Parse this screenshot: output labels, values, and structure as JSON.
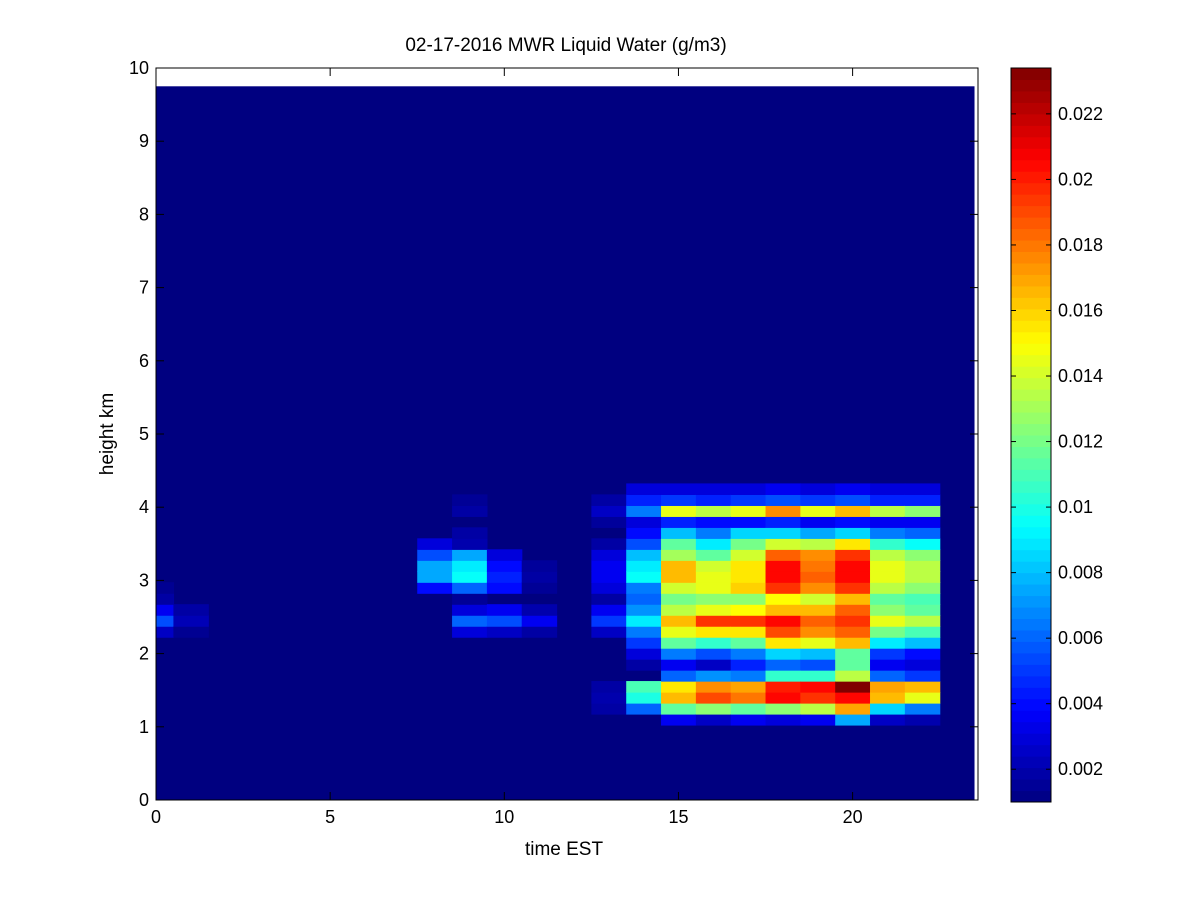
{
  "chart_data": {
    "type": "heatmap",
    "title": "02-17-2016 MWR Liquid Water (g/m3)",
    "xlabel": "time EST",
    "ylabel": "height km",
    "xlim": [
      0,
      23.6
    ],
    "ylim": [
      0,
      10
    ],
    "x_ticks": [
      "0",
      "5",
      "10",
      "15",
      "20"
    ],
    "y_ticks": [
      "0",
      "1",
      "2",
      "3",
      "4",
      "5",
      "6",
      "7",
      "8",
      "9",
      "10"
    ],
    "colormap": "jet",
    "colorbar": {
      "min": 0.001,
      "max": 0.0234,
      "ticks": [
        "0.002",
        "0.004",
        "0.006",
        "0.008",
        "0.01",
        "0.012",
        "0.014",
        "0.016",
        "0.018",
        "0.02",
        "0.022"
      ]
    },
    "background_value": 0.001,
    "data_extent": {
      "x": [
        0,
        23.5
      ],
      "y": [
        0,
        9.75
      ]
    },
    "x_bin_edges": [
      0,
      0.5,
      1.5,
      2.5,
      3.5,
      4.5,
      5.5,
      6.5,
      7.5,
      8.5,
      9.5,
      10.5,
      11.5,
      12.5,
      13.5,
      14.5,
      15.5,
      16.5,
      17.5,
      18.5,
      19.5,
      20.5,
      21.5,
      22.5,
      23.5
    ],
    "heights_km": [
      1.1,
      1.25,
      1.4,
      1.55,
      1.7,
      1.85,
      2.0,
      2.15,
      2.3,
      2.45,
      2.6,
      2.75,
      2.9,
      3.05,
      3.2,
      3.35,
      3.5,
      3.65,
      3.8,
      3.95,
      4.1,
      4.25
    ],
    "columns": [
      {
        "bin": 0,
        "values": {
          "2.3": 0.0025,
          "2.45": 0.0055,
          "2.6": 0.0035,
          "2.75": 0.0018,
          "2.9": 0.0014
        }
      },
      {
        "bin": 1,
        "values": {
          "2.3": 0.0014,
          "2.45": 0.0022,
          "2.6": 0.0018
        }
      },
      {
        "bin": 8,
        "values": {
          "2.9": 0.004,
          "3.05": 0.0075,
          "3.2": 0.0075,
          "3.35": 0.0055,
          "3.5": 0.003
        }
      },
      {
        "bin": 9,
        "values": {
          "2.3": 0.003,
          "2.45": 0.006,
          "2.6": 0.003,
          "2.75": 0.0015,
          "2.9": 0.006,
          "3.05": 0.0095,
          "3.2": 0.009,
          "3.35": 0.0075,
          "3.5": 0.002,
          "3.65": 0.0018,
          "3.95": 0.0018,
          "4.1": 0.0015
        }
      },
      {
        "bin": 10,
        "values": {
          "2.3": 0.0025,
          "2.45": 0.0055,
          "2.6": 0.0035,
          "2.9": 0.004,
          "3.05": 0.0045,
          "3.2": 0.004,
          "3.35": 0.003
        }
      },
      {
        "bin": 11,
        "values": {
          "2.3": 0.0018,
          "2.45": 0.0035,
          "2.6": 0.002,
          "2.9": 0.0015,
          "3.05": 0.0018,
          "3.2": 0.0016
        }
      },
      {
        "bin": 13,
        "values": {
          "1.25": 0.0018,
          "1.4": 0.002,
          "1.55": 0.0018,
          "2.3": 0.0025,
          "2.45": 0.005,
          "2.6": 0.0035,
          "2.75": 0.0018,
          "2.9": 0.003,
          "3.05": 0.0035,
          "3.2": 0.0035,
          "3.35": 0.003,
          "3.5": 0.0018,
          "3.8": 0.0016,
          "3.95": 0.0025,
          "4.1": 0.0018
        }
      },
      {
        "bin": 14,
        "values": {
          "1.25": 0.006,
          "1.4": 0.01,
          "1.55": 0.011,
          "1.85": 0.0018,
          "2.0": 0.003,
          "2.15": 0.005,
          "2.3": 0.0065,
          "2.45": 0.009,
          "2.6": 0.007,
          "2.75": 0.006,
          "2.9": 0.0065,
          "3.05": 0.0095,
          "3.2": 0.009,
          "3.35": 0.008,
          "3.5": 0.0055,
          "3.65": 0.004,
          "3.8": 0.003,
          "3.95": 0.0065,
          "4.1": 0.0045,
          "4.25": 0.003
        }
      },
      {
        "bin": 15,
        "values": {
          "1.1": 0.0035,
          "1.25": 0.0115,
          "1.4": 0.0165,
          "1.55": 0.0155,
          "1.7": 0.006,
          "1.85": 0.0035,
          "2.0": 0.0065,
          "2.15": 0.0115,
          "2.3": 0.0145,
          "2.45": 0.0165,
          "2.6": 0.0135,
          "2.75": 0.012,
          "2.9": 0.014,
          "3.05": 0.0165,
          "3.2": 0.0165,
          "3.35": 0.013,
          "3.5": 0.0115,
          "3.65": 0.008,
          "3.8": 0.0045,
          "3.95": 0.0145,
          "4.1": 0.005,
          "4.25": 0.003
        }
      },
      {
        "bin": 16,
        "values": {
          "1.1": 0.0025,
          "1.25": 0.0125,
          "1.4": 0.019,
          "1.55": 0.0175,
          "1.7": 0.007,
          "1.85": 0.0025,
          "2.0": 0.0055,
          "2.15": 0.0105,
          "2.3": 0.0155,
          "2.45": 0.0195,
          "2.6": 0.0145,
          "2.75": 0.0125,
          "2.9": 0.0145,
          "3.05": 0.0145,
          "3.2": 0.014,
          "3.35": 0.0115,
          "3.5": 0.009,
          "3.65": 0.0065,
          "3.8": 0.004,
          "3.95": 0.0135,
          "4.1": 0.0045,
          "4.25": 0.003
        }
      },
      {
        "bin": 17,
        "values": {
          "1.1": 0.0035,
          "1.25": 0.0115,
          "1.4": 0.018,
          "1.55": 0.017,
          "1.7": 0.0065,
          "1.85": 0.0045,
          "2.0": 0.0065,
          "2.15": 0.0115,
          "2.3": 0.0155,
          "2.45": 0.0195,
          "2.6": 0.015,
          "2.75": 0.0125,
          "2.9": 0.016,
          "3.05": 0.0155,
          "3.2": 0.0155,
          "3.35": 0.014,
          "3.5": 0.012,
          "3.65": 0.0085,
          "3.8": 0.004,
          "3.95": 0.0145,
          "4.1": 0.005,
          "4.25": 0.003
        }
      },
      {
        "bin": 18,
        "values": {
          "1.1": 0.003,
          "1.25": 0.0125,
          "1.4": 0.0205,
          "1.55": 0.02,
          "1.7": 0.0105,
          "1.85": 0.006,
          "2.0": 0.0085,
          "2.15": 0.0155,
          "2.3": 0.019,
          "2.45": 0.0205,
          "2.6": 0.0165,
          "2.75": 0.015,
          "2.9": 0.0195,
          "3.05": 0.0205,
          "3.2": 0.0205,
          "3.35": 0.0185,
          "3.5": 0.014,
          "3.65": 0.0085,
          "3.8": 0.0045,
          "3.95": 0.0175,
          "4.1": 0.0055,
          "4.25": 0.0035
        }
      },
      {
        "bin": 19,
        "values": {
          "1.1": 0.0035,
          "1.25": 0.0135,
          "1.4": 0.0195,
          "1.55": 0.0205,
          "1.7": 0.0105,
          "1.85": 0.0055,
          "2.0": 0.008,
          "2.15": 0.0145,
          "2.3": 0.0175,
          "2.45": 0.0185,
          "2.6": 0.0165,
          "2.75": 0.014,
          "2.9": 0.0175,
          "3.05": 0.0185,
          "3.2": 0.018,
          "3.35": 0.0175,
          "3.5": 0.0135,
          "3.65": 0.0075,
          "3.8": 0.0035,
          "3.95": 0.0145,
          "4.1": 0.005,
          "4.25": 0.003
        }
      },
      {
        "bin": 20,
        "values": {
          "1.1": 0.0075,
          "1.25": 0.017,
          "1.4": 0.0205,
          "1.55": 0.0234,
          "1.7": 0.0135,
          "1.85": 0.0115,
          "2.0": 0.0115,
          "2.15": 0.0165,
          "2.3": 0.0185,
          "2.45": 0.0195,
          "2.6": 0.0185,
          "2.75": 0.0165,
          "2.9": 0.0195,
          "3.05": 0.0205,
          "3.2": 0.0205,
          "3.35": 0.0195,
          "3.5": 0.0155,
          "3.65": 0.0085,
          "3.8": 0.004,
          "3.95": 0.0165,
          "4.1": 0.0055,
          "4.25": 0.0035
        }
      },
      {
        "bin": 21,
        "values": {
          "1.1": 0.0025,
          "1.25": 0.0085,
          "1.4": 0.0165,
          "1.55": 0.017,
          "1.7": 0.006,
          "1.85": 0.0035,
          "2.0": 0.005,
          "2.15": 0.009,
          "2.3": 0.012,
          "2.45": 0.0145,
          "2.6": 0.0125,
          "2.75": 0.0115,
          "2.9": 0.0135,
          "3.05": 0.0145,
          "3.2": 0.0145,
          "3.35": 0.0135,
          "3.5": 0.0105,
          "3.65": 0.0065,
          "3.8": 0.0035,
          "3.95": 0.0135,
          "4.1": 0.0045,
          "4.25": 0.003
        }
      },
      {
        "bin": 22,
        "values": {
          "1.1": 0.002,
          "1.25": 0.0065,
          "1.4": 0.0145,
          "1.55": 0.0165,
          "1.7": 0.005,
          "1.85": 0.003,
          "2.0": 0.004,
          "2.15": 0.008,
          "2.3": 0.011,
          "2.45": 0.0135,
          "2.6": 0.0115,
          "2.75": 0.011,
          "2.9": 0.0125,
          "3.05": 0.0135,
          "3.2": 0.0135,
          "3.35": 0.0125,
          "3.5": 0.0095,
          "3.65": 0.006,
          "3.8": 0.0035,
          "3.95": 0.0125,
          "4.1": 0.0045,
          "4.25": 0.003
        }
      }
    ]
  }
}
